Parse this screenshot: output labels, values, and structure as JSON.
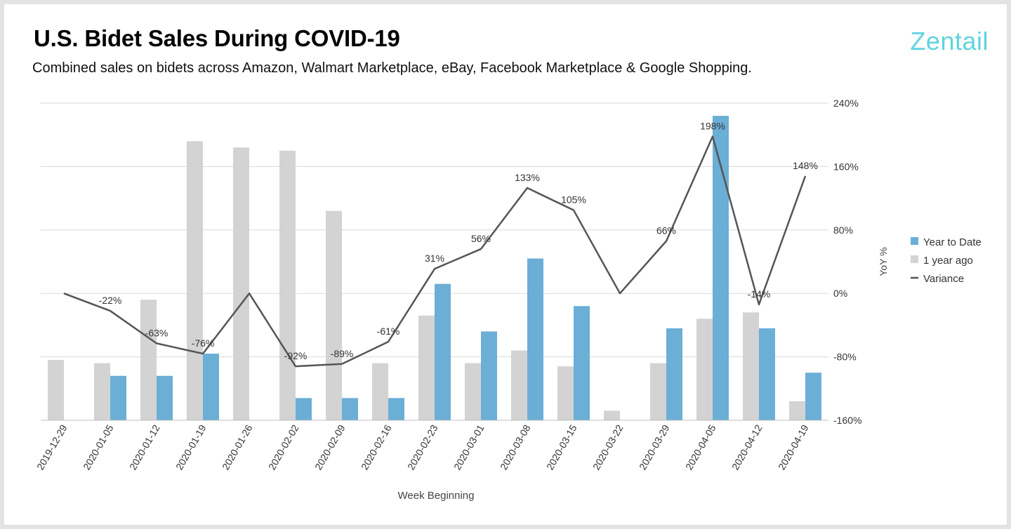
{
  "header": {
    "title": "U.S. Bidet Sales During COVID-19",
    "subtitle": "Combined sales on bidets across Amazon, Walmart Marketplace, eBay, Facebook Marketplace & Google Shopping.",
    "brand": "Zentail"
  },
  "colors": {
    "ytd": "#6baed6",
    "prior": "#d3d3d3",
    "variance": "#555555",
    "grid": "#d9d9d9",
    "brand": "#5fd3df"
  },
  "chart_data": {
    "type": "bar",
    "title": "U.S. Bidet Sales During COVID-19",
    "xlabel": "Week Beginning",
    "ylabel_right": "YoY %",
    "categories": [
      "2019-12-29",
      "2020-01-05",
      "2020-01-12",
      "2020-01-19",
      "2020-01-26",
      "2020-02-02",
      "2020-02-09",
      "2020-02-16",
      "2020-02-23",
      "2020-03-01",
      "2020-03-08",
      "2020-03-15",
      "2020-03-22",
      "2020-03-29",
      "2020-04-05",
      "2020-04-12",
      "2020-04-19"
    ],
    "bar_scale": [
      0,
      100
    ],
    "series": [
      {
        "name": "Year to Date",
        "kind": "bar",
        "values": [
          0,
          14,
          14,
          21,
          0,
          7,
          7,
          7,
          43,
          28,
          51,
          36,
          0,
          29,
          96,
          29,
          15
        ]
      },
      {
        "name": "1 year ago",
        "kind": "bar",
        "values": [
          19,
          18,
          38,
          88,
          86,
          85,
          66,
          18,
          33,
          18,
          22,
          17,
          3,
          18,
          32,
          34,
          6
        ]
      },
      {
        "name": "Variance",
        "kind": "line",
        "values": [
          0,
          -22,
          -63,
          -76,
          0,
          -92,
          -89,
          -61,
          31,
          56,
          133,
          105,
          0,
          66,
          198,
          -14,
          148
        ]
      }
    ],
    "point_labels": [
      "",
      "-22%",
      "-63%",
      "-76%",
      "",
      "-92%",
      "-89%",
      "-61%",
      "31%",
      "56%",
      "133%",
      "105%",
      "",
      "66%",
      "198%",
      "-14%",
      "148%"
    ],
    "right_axis": {
      "ylim": [
        -160,
        240
      ],
      "ticks": [
        -160,
        -80,
        0,
        80,
        160,
        240
      ],
      "tick_labels": [
        "-160%",
        "-80%",
        "0%",
        "80%",
        "160%",
        "240%"
      ]
    },
    "legend_position": "right",
    "grid": true
  }
}
